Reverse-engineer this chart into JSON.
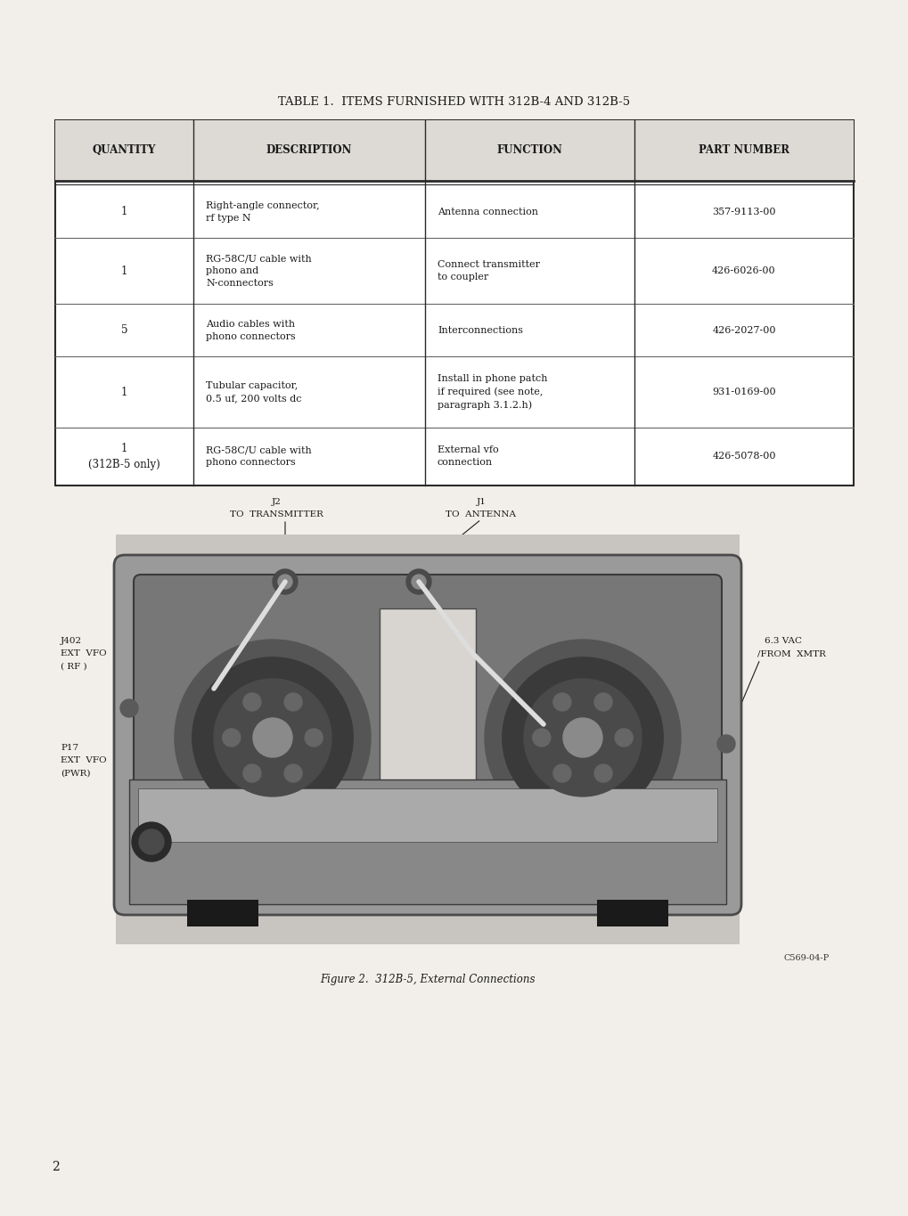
{
  "bg_color": "#e8e5e0",
  "page_bg": "#f2efea",
  "title": "TABLE 1.  ITEMS FURNISHED WITH 312B-4 AND 312B-5",
  "title_fontsize": 9.5,
  "col_headers": [
    "QUANTITY",
    "DESCRIPTION",
    "FUNCTION",
    "PART NUMBER"
  ],
  "col_header_fontsize": 8.5,
  "rows": [
    {
      "qty": "1",
      "desc": "Right-angle connector,\nrf type N",
      "func": "Antenna connection",
      "part": "357-9113-00"
    },
    {
      "qty": "1",
      "desc": "RG-58C/U cable with\nphono and\nN-connectors",
      "func": "Connect transmitter\nto coupler",
      "part": "426-6026-00"
    },
    {
      "qty": "5",
      "desc": "Audio cables with\nphono connectors",
      "func": "Interconnections",
      "part": "426-2027-00"
    },
    {
      "qty": "1",
      "desc": "Tubular capacitor,\n0.5 uf, 200 volts dc",
      "func": "Install in phone patch\nif required (see note,\nparagraph 3.1.2.h)",
      "part": "931-0169-00"
    },
    {
      "qty": "1\n(312B-5 only)",
      "desc": "RG-58C/U cable with\nphono connectors",
      "func": "External vfo\nconnection",
      "part": "426-5078-00"
    }
  ],
  "figure_caption": "Figure 2.  312B-5, External Connections",
  "figure_caption_fontsize": 8.5,
  "page_number": "2",
  "catalog_number": "C569-04-P"
}
